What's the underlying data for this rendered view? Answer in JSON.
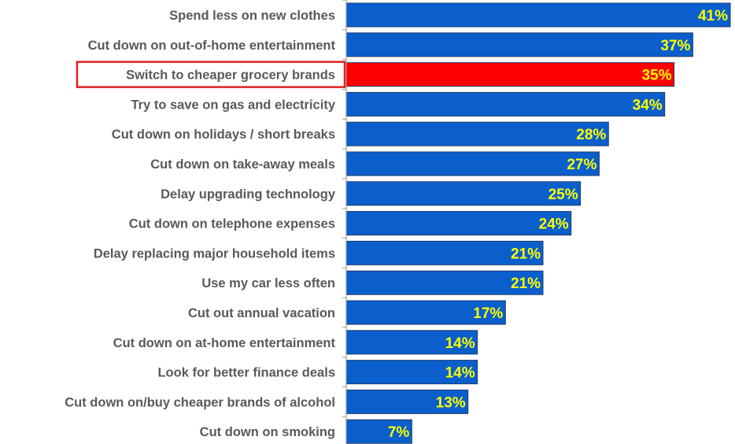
{
  "chart_data": {
    "type": "bar",
    "orientation": "horizontal",
    "categories": [
      "Spend less on new clothes",
      "Cut down on out-of-home entertainment",
      "Switch to cheaper grocery brands",
      "Try to save on gas and electricity",
      "Cut down on holidays / short breaks",
      "Cut down on take-away meals",
      "Delay upgrading technology",
      "Cut down on telephone expenses",
      "Delay replacing major household items",
      "Use my car less often",
      "Cut out annual vacation",
      "Cut down on at-home entertainment",
      "Look for better finance deals",
      "Cut down on/buy cheaper brands of alcohol",
      "Cut down on smoking"
    ],
    "values": [
      41,
      37,
      35,
      34,
      28,
      27,
      25,
      24,
      21,
      21,
      17,
      14,
      14,
      13,
      7
    ],
    "value_labels": [
      "41%",
      "37%",
      "35%",
      "34%",
      "28%",
      "27%",
      "25%",
      "24%",
      "21%",
      "21%",
      "17%",
      "14%",
      "14%",
      "13%",
      "7%"
    ],
    "highlighted_category": "Switch to cheaper grocery brands",
    "xlim": [
      0,
      41
    ],
    "grid": false,
    "colors": {
      "bar": "#0a5fcc",
      "bar_highlight": "#ff0000",
      "bar_border": "#1f3a6b",
      "value_label": "#ffff00",
      "category_label": "#595959",
      "highlight_box": "#e02020",
      "axis": "#9a9a9a"
    }
  }
}
